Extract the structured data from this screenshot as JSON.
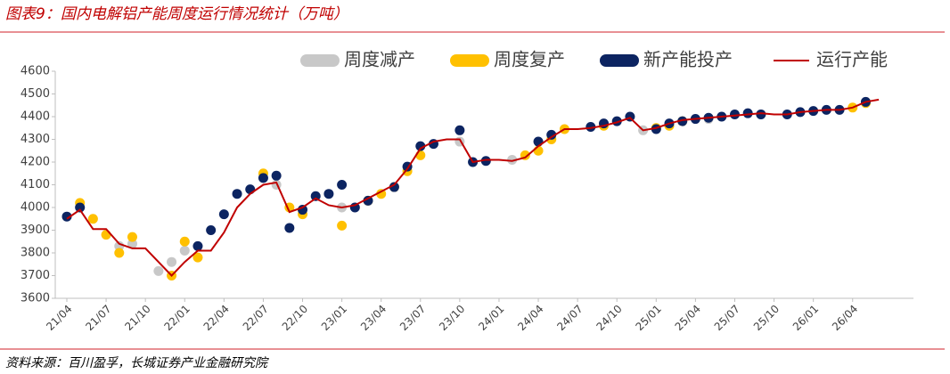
{
  "chart_data": {
    "type": "line",
    "title": "图表9：国内电解铝产能周度运行情况统计（万吨）",
    "source": "资料来源：百川盈孚，长城证券产业金融研究院",
    "categories": [
      "21/04",
      null,
      null,
      "21/07",
      null,
      null,
      "21/10",
      null,
      null,
      "22/01",
      null,
      null,
      "22/04",
      null,
      null,
      "22/07",
      null,
      null,
      "22/10",
      null,
      null,
      "23/01",
      null,
      null,
      "23/04",
      null,
      null,
      "23/07",
      null,
      null,
      "23/10",
      null,
      null,
      "24/01",
      null,
      null,
      "24/04",
      null,
      null,
      "24/07",
      null,
      null,
      "24/10",
      null,
      null,
      "25/01",
      null,
      null,
      "25/04",
      null,
      null,
      "25/07",
      null,
      null,
      "25/10",
      null,
      null,
      "26/01",
      null,
      null,
      "26/04",
      null,
      null
    ],
    "series": [
      {
        "name": "周度减产",
        "type": "scatter",
        "color": "#c8c8c8",
        "values": [
          null,
          4000,
          null,
          null,
          3830,
          3840,
          null,
          3720,
          3760,
          3810,
          null,
          null,
          null,
          null,
          null,
          null,
          4100,
          null,
          null,
          null,
          null,
          4000,
          null,
          null,
          null,
          null,
          null,
          null,
          null,
          null,
          4290,
          null,
          null,
          null,
          4210,
          null,
          null,
          null,
          null,
          null,
          null,
          null,
          null,
          null,
          4340,
          null,
          null,
          null,
          null,
          4390,
          null,
          null,
          null,
          4410,
          null,
          null,
          null,
          null,
          null,
          null,
          null,
          null,
          null
        ]
      },
      {
        "name": "周度复产",
        "type": "scatter",
        "color": "#ffc000",
        "values": [
          null,
          4020,
          3950,
          3880,
          3800,
          3870,
          null,
          null,
          3700,
          3850,
          3780,
          null,
          null,
          null,
          null,
          4150,
          null,
          4000,
          3970,
          null,
          null,
          3920,
          null,
          4030,
          4060,
          4090,
          4160,
          4230,
          null,
          null,
          null,
          null,
          null,
          null,
          null,
          4230,
          4250,
          4300,
          4345,
          null,
          null,
          4360,
          null,
          null,
          null,
          4350,
          4360,
          4380,
          null,
          null,
          null,
          null,
          null,
          null,
          null,
          null,
          null,
          null,
          null,
          null,
          4440,
          4460,
          null
        ]
      },
      {
        "name": "新产能投产",
        "type": "scatter",
        "color": "#0c2461",
        "values": [
          3960,
          4000,
          null,
          null,
          null,
          null,
          null,
          null,
          null,
          null,
          3830,
          3900,
          3970,
          4060,
          4080,
          4130,
          4140,
          3910,
          3990,
          4050,
          4060,
          4100,
          4000,
          4030,
          null,
          4090,
          4180,
          4270,
          4280,
          null,
          4340,
          4200,
          4205,
          null,
          null,
          null,
          4290,
          4320,
          null,
          null,
          4355,
          4370,
          4380,
          4400,
          null,
          4345,
          4370,
          4380,
          4390,
          4395,
          4400,
          4410,
          4415,
          4410,
          null,
          4410,
          4420,
          4425,
          4430,
          4430,
          null,
          4465,
          null
        ]
      },
      {
        "name": "运行产能",
        "type": "line",
        "color": "#c00000",
        "values": [
          3950,
          3990,
          3905,
          3905,
          3840,
          3820,
          3820,
          3760,
          3700,
          3760,
          3810,
          3810,
          3890,
          4000,
          4060,
          4100,
          4110,
          3980,
          4000,
          4040,
          4010,
          4000,
          4010,
          4040,
          4070,
          4100,
          4170,
          4260,
          4290,
          4300,
          4300,
          4200,
          4210,
          4210,
          4205,
          4220,
          4270,
          4310,
          4345,
          4345,
          4350,
          4360,
          4375,
          4395,
          4340,
          4350,
          4370,
          4385,
          4390,
          4395,
          4400,
          4405,
          4410,
          4415,
          4410,
          4410,
          4420,
          4425,
          4430,
          4430,
          4440,
          4465,
          4475
        ]
      }
    ],
    "ylim": [
      3600,
      4600
    ],
    "yticks": [
      3600,
      3700,
      3800,
      3900,
      4000,
      4100,
      4200,
      4300,
      4400,
      4500,
      4600
    ]
  }
}
